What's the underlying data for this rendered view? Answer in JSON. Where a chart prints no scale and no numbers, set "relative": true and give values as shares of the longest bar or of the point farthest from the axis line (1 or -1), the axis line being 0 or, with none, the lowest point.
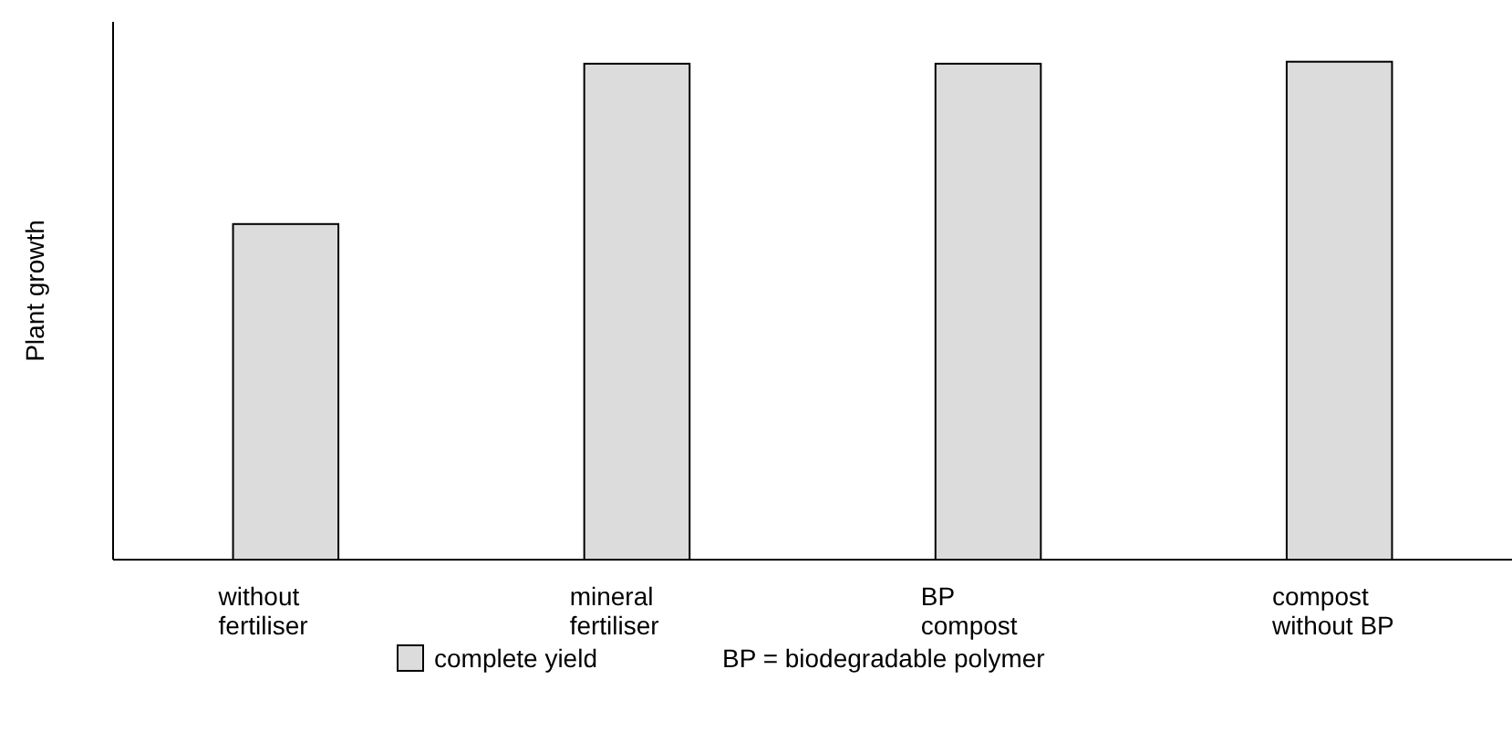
{
  "chart_data": {
    "type": "bar",
    "ylabel": "Plant growth",
    "categories": [
      "without\nfertiliser",
      "mineral\nfertiliser",
      "BP\ncompost",
      "compost\nwithout BP"
    ],
    "series": [
      {
        "name": "complete yield",
        "color": "#dcdcdc",
        "values": [
          0.674,
          0.996,
          0.996,
          1
        ]
      }
    ],
    "relative": true,
    "legend": "bottom",
    "annotations": [
      "BP = biodegradable polymer"
    ]
  }
}
